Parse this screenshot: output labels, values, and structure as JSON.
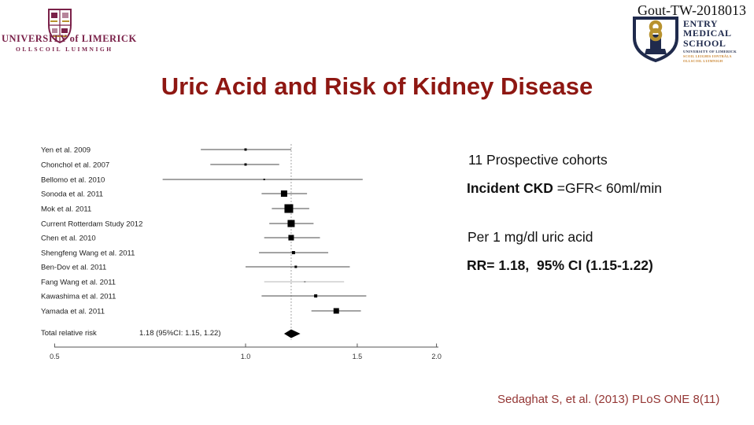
{
  "header": {
    "code": "Gout-TW-2018013",
    "ul_logo": {
      "name": "UNIVERSITY of LIMERICK",
      "irish": "OLLSCOIL LUIMNIGH"
    },
    "gems_logo": {
      "line1": "ENTRY",
      "line2": "MEDICAL",
      "line3": "SCHOOL",
      "sub1": "UNIVERSITY OF LIMERICK",
      "sub2": "SCOIL LEIGHIS IONTRÁLA",
      "sub3": "OLLSCOIL LUIMNIGH"
    }
  },
  "title": "Uric Acid and Risk of Kidney Disease",
  "notes": {
    "line1": "11 Prospective cohorts",
    "line2_bold": "Incident CKD",
    "line2_rest": " =GFR< 60ml/min",
    "line3": "Per 1 mg/dl uric acid",
    "line4": "RR= 1.18,  95% CI (1.15-1.22)"
  },
  "citation": "Sedaghat S, et al. (2013) PLoS ONE 8(11)",
  "colors": {
    "title": "#8e1712",
    "citation": "#943634",
    "ul_maroon": "#7a2149",
    "gems_navy": "#1f2a4c",
    "gems_gold": "#b8922e",
    "gems_orange": "#c8822c",
    "plot_ink": "#4a4a4a",
    "marker": "#000000",
    "reference_line": "#c6c6c6"
  },
  "chart_data": {
    "type": "forest",
    "xscale": "log",
    "xlim": [
      0.5,
      2.0
    ],
    "x_ticks": [
      0.5,
      1.0,
      1.5,
      2.0
    ],
    "x_tick_labels": [
      "0.5",
      "1.0",
      "1.5",
      "2.0"
    ],
    "pooled_rr": 1.18,
    "legend_position": "none",
    "grid": false,
    "studies": [
      {
        "label": "Yen et al. 2009",
        "rr": 1.0,
        "ci": [
          0.85,
          1.18
        ],
        "size": 3
      },
      {
        "label": "Chonchol et al. 2007",
        "rr": 1.0,
        "ci": [
          0.88,
          1.13
        ],
        "size": 3
      },
      {
        "label": "Bellomo et al. 2010",
        "rr": 1.07,
        "ci": [
          0.74,
          1.53
        ],
        "size": 2
      },
      {
        "label": "Sonoda et al. 2011",
        "rr": 1.15,
        "ci": [
          1.06,
          1.25
        ],
        "size": 8
      },
      {
        "label": "Mok et al. 2011",
        "rr": 1.17,
        "ci": [
          1.1,
          1.26
        ],
        "size": 11
      },
      {
        "label": "Current Rotterdam Study 2012",
        "rr": 1.18,
        "ci": [
          1.09,
          1.28
        ],
        "size": 9
      },
      {
        "label": "Chen et al. 2010",
        "rr": 1.18,
        "ci": [
          1.07,
          1.31
        ],
        "size": 7
      },
      {
        "label": "Shengfeng Wang et al. 2011",
        "rr": 1.19,
        "ci": [
          1.05,
          1.35
        ],
        "size": 4
      },
      {
        "label": "Ben-Dov et al. 2011",
        "rr": 1.2,
        "ci": [
          1.0,
          1.46
        ],
        "size": 3
      },
      {
        "label": "Fang Wang et al. 2011",
        "rr": 1.24,
        "ci": [
          1.07,
          1.43
        ],
        "size": 2,
        "faint": true
      },
      {
        "label": "Kawashima et al. 2011",
        "rr": 1.29,
        "ci": [
          1.06,
          1.55
        ],
        "size": 4
      },
      {
        "label": "Yamada et al. 2011",
        "rr": 1.39,
        "ci": [
          1.27,
          1.52
        ],
        "size": 7
      }
    ],
    "total": {
      "label": "Total relative risk",
      "value_label": "1.18 (95%CI: 1.15, 1.22)",
      "rr": 1.18,
      "ci": [
        1.15,
        1.22
      ]
    }
  }
}
